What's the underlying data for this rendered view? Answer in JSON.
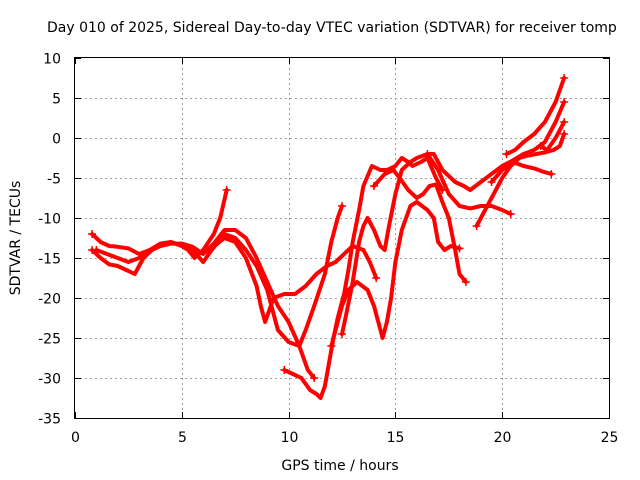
{
  "chart_data": {
    "type": "scatter",
    "title": "Day 010 of 2025, Sidereal Day-to-day VTEC variation (SDTVAR) for receiver tomp",
    "xlabel": "GPS time / hours",
    "ylabel": "SDTVAR / TECUs",
    "xlim": [
      0,
      25
    ],
    "ylim": [
      -35,
      10
    ],
    "xticks": [
      0,
      5,
      10,
      15,
      20,
      25
    ],
    "yticks": [
      -35,
      -30,
      -25,
      -20,
      -15,
      -10,
      -5,
      0,
      5,
      10
    ],
    "grid": true,
    "marker": "+",
    "color": "#ff0000",
    "series": [
      {
        "points": [
          [
            0.8,
            -12
          ],
          [
            1.2,
            -13
          ],
          [
            1.6,
            -13.5
          ],
          [
            2,
            -13.6
          ],
          [
            2.5,
            -13.8
          ],
          [
            3,
            -14.5
          ],
          [
            3.5,
            -14
          ],
          [
            4,
            -13.2
          ],
          [
            4.5,
            -13
          ],
          [
            5,
            -13.5
          ],
          [
            5.3,
            -14
          ],
          [
            5.6,
            -15
          ],
          [
            6,
            -14
          ],
          [
            6.5,
            -12
          ],
          [
            6.8,
            -10
          ],
          [
            7.1,
            -6.5
          ]
        ]
      },
      {
        "points": [
          [
            0.8,
            -14
          ],
          [
            1.2,
            -15
          ],
          [
            1.6,
            -15.8
          ],
          [
            2,
            -16
          ],
          [
            2.4,
            -16.5
          ],
          [
            2.8,
            -17
          ],
          [
            3.2,
            -15
          ],
          [
            3.6,
            -14
          ],
          [
            4,
            -13.5
          ],
          [
            4.5,
            -13
          ],
          [
            5,
            -13.5
          ],
          [
            5.5,
            -14
          ],
          [
            6,
            -15.5
          ],
          [
            6.4,
            -14
          ],
          [
            7,
            -12
          ],
          [
            7.5,
            -12.5
          ],
          [
            8,
            -14
          ],
          [
            8.5,
            -16
          ],
          [
            9,
            -19
          ],
          [
            9.3,
            -22
          ],
          [
            9.5,
            -24
          ],
          [
            10,
            -25.5
          ],
          [
            10.5,
            -26
          ],
          [
            10.8,
            -24
          ],
          [
            11.2,
            -21
          ],
          [
            11.7,
            -17
          ],
          [
            12,
            -13
          ],
          [
            12.3,
            -10
          ],
          [
            12.5,
            -8.5
          ]
        ]
      },
      {
        "points": [
          [
            1,
            -14
          ],
          [
            1.5,
            -14.5
          ],
          [
            2,
            -15
          ],
          [
            2.5,
            -15.5
          ],
          [
            3,
            -15
          ],
          [
            3.5,
            -14
          ],
          [
            4,
            -13.5
          ],
          [
            4.5,
            -13.2
          ],
          [
            5,
            -13.2
          ],
          [
            5.5,
            -13.6
          ],
          [
            6,
            -14.5
          ],
          [
            6.5,
            -13.2
          ],
          [
            7,
            -11.5
          ],
          [
            7.5,
            -11.5
          ],
          [
            8,
            -12.5
          ],
          [
            8.5,
            -15
          ],
          [
            9,
            -18
          ],
          [
            9.5,
            -21
          ],
          [
            10,
            -23
          ],
          [
            10.5,
            -26
          ],
          [
            10.9,
            -29
          ],
          [
            11.2,
            -30
          ]
        ]
      },
      {
        "points": [
          [
            6.3,
            -14
          ],
          [
            7,
            -12.5
          ],
          [
            7.5,
            -13
          ],
          [
            8,
            -15
          ],
          [
            8.5,
            -18.5
          ],
          [
            8.7,
            -21
          ],
          [
            8.9,
            -23
          ],
          [
            9.3,
            -20
          ],
          [
            9.8,
            -19.5
          ],
          [
            10.3,
            -19.5
          ],
          [
            10.8,
            -18.5
          ],
          [
            11.3,
            -17
          ],
          [
            11.8,
            -16
          ],
          [
            12.2,
            -15.5
          ],
          [
            12.6,
            -14.5
          ],
          [
            13,
            -13.5
          ],
          [
            13.5,
            -14
          ],
          [
            13.8,
            -15.5
          ],
          [
            14.1,
            -17.5
          ]
        ]
      },
      {
        "points": [
          [
            9.8,
            -29
          ],
          [
            10.2,
            -29.5
          ],
          [
            10.6,
            -30
          ],
          [
            11,
            -31.5
          ],
          [
            11.3,
            -32
          ],
          [
            11.5,
            -32.5
          ],
          [
            11.7,
            -31
          ],
          [
            11.9,
            -28
          ],
          [
            12.1,
            -25
          ],
          [
            12.3,
            -22.5
          ],
          [
            12.6,
            -19.5
          ],
          [
            12.8,
            -16.5
          ],
          [
            13,
            -13
          ],
          [
            13.3,
            -9
          ],
          [
            13.5,
            -6
          ],
          [
            13.9,
            -3.5
          ],
          [
            14.3,
            -4
          ],
          [
            14.6,
            -4
          ],
          [
            15,
            -3.5
          ],
          [
            15.3,
            -2.5
          ],
          [
            15.6,
            -3
          ],
          [
            15.8,
            -3.5
          ],
          [
            16.2,
            -3
          ],
          [
            16.5,
            -2.5
          ],
          [
            16.9,
            -5
          ],
          [
            17.2,
            -6.5
          ]
        ]
      },
      {
        "points": [
          [
            12,
            -26
          ],
          [
            12.2,
            -24
          ],
          [
            12.5,
            -21
          ],
          [
            12.8,
            -19
          ],
          [
            13.2,
            -18
          ],
          [
            13.7,
            -19
          ],
          [
            14,
            -21
          ],
          [
            14.2,
            -23
          ],
          [
            14.4,
            -25
          ],
          [
            14.6,
            -23
          ],
          [
            14.8,
            -20
          ],
          [
            15,
            -15.5
          ],
          [
            15.3,
            -11.5
          ],
          [
            15.7,
            -8.5
          ],
          [
            16,
            -8
          ],
          [
            16.5,
            -9
          ],
          [
            16.8,
            -10
          ],
          [
            17,
            -13
          ],
          [
            17.3,
            -14
          ],
          [
            17.6,
            -13.5
          ],
          [
            18,
            -13.8
          ]
        ]
      },
      {
        "points": [
          [
            12.5,
            -24.5
          ],
          [
            12.7,
            -22
          ],
          [
            13,
            -18
          ],
          [
            13.3,
            -13
          ],
          [
            13.5,
            -11
          ],
          [
            13.7,
            -10
          ],
          [
            14,
            -11.5
          ],
          [
            14.3,
            -13.5
          ],
          [
            14.5,
            -14
          ],
          [
            14.7,
            -11
          ],
          [
            15,
            -7
          ],
          [
            15.3,
            -4
          ],
          [
            15.7,
            -3
          ],
          [
            16,
            -2.5
          ],
          [
            16.5,
            -2
          ],
          [
            16.8,
            -2
          ],
          [
            17.2,
            -4
          ],
          [
            17.8,
            -5.5
          ],
          [
            18.2,
            -6
          ],
          [
            18.5,
            -6.5
          ],
          [
            19,
            -5.5
          ],
          [
            19.5,
            -4.5
          ],
          [
            20,
            -3.5
          ],
          [
            20.5,
            -2.8
          ],
          [
            21,
            -2
          ],
          [
            21.5,
            -1.5
          ],
          [
            22,
            -0.5
          ],
          [
            22.5,
            2
          ],
          [
            22.9,
            4.5
          ]
        ]
      },
      {
        "points": [
          [
            14,
            -6
          ],
          [
            14.5,
            -4.5
          ],
          [
            14.9,
            -4
          ],
          [
            15.2,
            -5
          ],
          [
            15.6,
            -6.5
          ],
          [
            16,
            -7.5
          ],
          [
            16.3,
            -7
          ],
          [
            16.6,
            -6
          ],
          [
            16.9,
            -5.8
          ],
          [
            17.2,
            -8
          ],
          [
            17.5,
            -10
          ],
          [
            17.8,
            -14
          ],
          [
            18,
            -17
          ],
          [
            18.3,
            -18
          ]
        ]
      },
      {
        "points": [
          [
            16.5,
            -2
          ],
          [
            17,
            -4
          ],
          [
            17.5,
            -7
          ],
          [
            18,
            -8.5
          ],
          [
            18.5,
            -8.8
          ],
          [
            19,
            -8.5
          ],
          [
            19.5,
            -8.5
          ],
          [
            20,
            -9
          ],
          [
            20.4,
            -9.5
          ]
        ]
      },
      {
        "points": [
          [
            18.8,
            -11
          ],
          [
            19.2,
            -9
          ],
          [
            19.6,
            -7
          ],
          [
            20,
            -5
          ],
          [
            20.4,
            -3.5
          ],
          [
            20.8,
            -2.5
          ],
          [
            21.2,
            -2.2
          ],
          [
            21.6,
            -2
          ],
          [
            22,
            -1.8
          ],
          [
            22.4,
            -1.5
          ],
          [
            22.7,
            -1
          ],
          [
            22.9,
            0.5
          ]
        ]
      },
      {
        "points": [
          [
            19.5,
            -5.5
          ],
          [
            20,
            -4
          ],
          [
            20.5,
            -3
          ],
          [
            21,
            -3.5
          ],
          [
            21.5,
            -3.8
          ],
          [
            21.9,
            -4.2
          ],
          [
            22.3,
            -4.5
          ]
        ]
      },
      {
        "points": [
          [
            20.2,
            -2
          ],
          [
            20.6,
            -1.5
          ],
          [
            21,
            -0.5
          ],
          [
            21.5,
            0.5
          ],
          [
            22,
            2
          ],
          [
            22.5,
            4.5
          ],
          [
            22.9,
            7.5
          ]
        ]
      },
      {
        "points": [
          [
            21.8,
            -1
          ],
          [
            22.1,
            -1.5
          ],
          [
            22.5,
            0
          ],
          [
            22.9,
            2
          ]
        ]
      }
    ]
  }
}
